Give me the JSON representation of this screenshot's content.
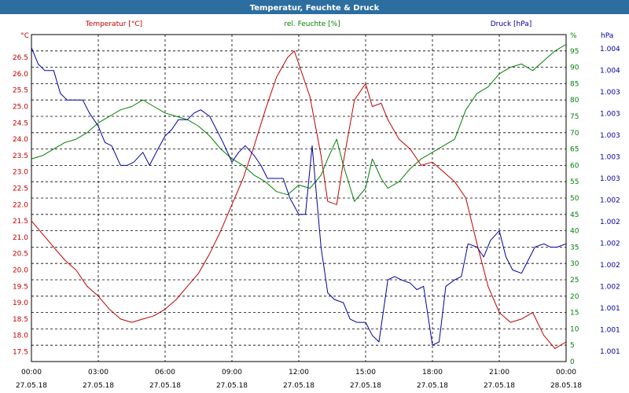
{
  "chart_data": {
    "type": "line",
    "title": "Temperatur, Feuchte & Druck",
    "x_ticks": [
      {
        "time": "00:00",
        "date": "27.05.18"
      },
      {
        "time": "03:00",
        "date": "27.05.18"
      },
      {
        "time": "06:00",
        "date": "27.05.18"
      },
      {
        "time": "09:00",
        "date": "27.05.18"
      },
      {
        "time": "12:00",
        "date": "27.05.18"
      },
      {
        "time": "15:00",
        "date": "27.05.18"
      },
      {
        "time": "18:00",
        "date": "27.05.18"
      },
      {
        "time": "21:00",
        "date": "27.05.18"
      },
      {
        "time": "00:00",
        "date": "28.05.18"
      }
    ],
    "xlim": [
      0,
      24
    ],
    "grid": true,
    "axes": {
      "temp": {
        "label": "Temperatur [°C]",
        "unit": "°C",
        "color": "#c00000",
        "ylim": [
          17.2,
          27.2
        ],
        "ticks": [
          "17.5",
          "18.0",
          "18.5",
          "19.0",
          "19.5",
          "20.0",
          "20.5",
          "21.0",
          "21.5",
          "22.0",
          "22.5",
          "23.0",
          "23.5",
          "24.0",
          "24.5",
          "25.0",
          "25.5",
          "26.0",
          "26.5"
        ]
      },
      "hum": {
        "label": "rel. Feuchte [%]",
        "unit": "%",
        "color": "#008000",
        "ylim": [
          0,
          100
        ],
        "ticks": [
          "0",
          "5",
          "10",
          "15",
          "20",
          "25",
          "30",
          "35",
          "40",
          "45",
          "50",
          "55",
          "60",
          "65",
          "70",
          "75",
          "80",
          "85",
          "90",
          "95"
        ]
      },
      "press": {
        "label": "Druck [hPa]",
        "unit": "hPa",
        "color": "#0000a0",
        "ticks": [
          "1.001",
          "1.001",
          "1.001",
          "1.002",
          "1.002",
          "1.002",
          "1.002",
          "1.002",
          "1.003",
          "1.003",
          "1.003",
          "1.003",
          "1.003",
          "1.004",
          "1.004"
        ]
      }
    },
    "series": [
      {
        "name": "Temperatur [°C]",
        "axis": "temp",
        "color": "#c00000",
        "x": [
          0,
          0.5,
          1,
          1.5,
          2,
          2.5,
          3,
          3.5,
          4,
          4.5,
          5,
          5.5,
          6,
          6.5,
          7,
          7.5,
          8,
          8.5,
          9,
          9.5,
          10,
          10.5,
          11,
          11.5,
          11.8,
          12,
          12.5,
          13,
          13.3,
          13.7,
          14,
          14.5,
          15,
          15.3,
          15.7,
          16,
          16.5,
          17,
          17.5,
          18,
          18.5,
          19,
          19.5,
          20,
          20.5,
          21,
          21.5,
          22,
          22.5,
          23,
          23.5,
          24
        ],
        "y": [
          21.5,
          21.1,
          20.7,
          20.3,
          20.0,
          19.5,
          19.2,
          18.8,
          18.5,
          18.4,
          18.5,
          18.6,
          18.8,
          19.1,
          19.5,
          19.9,
          20.5,
          21.2,
          22.0,
          22.8,
          23.8,
          24.9,
          25.9,
          26.5,
          26.7,
          26.3,
          25.3,
          23.5,
          22.1,
          22.0,
          23.3,
          25.2,
          25.7,
          25.0,
          25.1,
          24.6,
          24.0,
          23.7,
          23.2,
          23.3,
          23.0,
          22.7,
          22.2,
          20.8,
          19.5,
          18.7,
          18.4,
          18.5,
          18.7,
          18.0,
          17.6,
          17.8
        ]
      },
      {
        "name": "rel. Feuchte [%]",
        "axis": "hum",
        "color": "#008000",
        "x": [
          0,
          0.5,
          1,
          1.5,
          2,
          2.5,
          3,
          3.5,
          4,
          4.5,
          5,
          5.5,
          6,
          6.5,
          7,
          7.5,
          8,
          8.5,
          9,
          9.5,
          10,
          10.5,
          11,
          11.5,
          12,
          12.5,
          13,
          13.3,
          13.7,
          14,
          14.5,
          15,
          15.3,
          15.7,
          16,
          16.5,
          17,
          17.5,
          18,
          18.5,
          19,
          19.5,
          20,
          20.5,
          21,
          21.5,
          22,
          22.5,
          23,
          23.5,
          24
        ],
        "y": [
          62,
          63,
          65,
          67,
          68,
          70,
          73,
          75,
          77,
          78,
          80,
          78,
          76,
          75,
          74,
          72,
          69,
          65,
          62,
          60,
          57,
          55,
          52,
          51,
          54,
          53,
          57,
          62,
          68,
          60,
          49,
          53,
          62,
          56,
          53,
          55,
          59,
          62,
          64,
          66,
          68,
          77,
          82,
          84,
          88,
          90,
          91,
          89,
          92,
          95,
          97
        ]
      },
      {
        "name": "Druck [hPa]",
        "axis": "press",
        "color": "#0000a0",
        "x": [
          0,
          0.3,
          0.6,
          1,
          1.3,
          1.6,
          2,
          2.3,
          2.6,
          3,
          3.3,
          3.6,
          4,
          4.3,
          4.6,
          5,
          5.3,
          5.6,
          6,
          6.3,
          6.6,
          7,
          7.3,
          7.6,
          8,
          8.3,
          8.6,
          9,
          9.3,
          9.6,
          10,
          10.3,
          10.6,
          11,
          11.3,
          11.6,
          12,
          12.3,
          12.6,
          13,
          13.3,
          13.6,
          14,
          14.3,
          14.6,
          15,
          15.3,
          15.6,
          16,
          16.3,
          16.6,
          17,
          17.3,
          17.6,
          18,
          18.3,
          18.6,
          19,
          19.3,
          19.6,
          20,
          20.3,
          20.6,
          21,
          21.3,
          21.6,
          22,
          22.3,
          22.6,
          23,
          23.3,
          23.6,
          24
        ],
        "y": [
          96,
          91,
          89,
          89,
          82,
          80,
          80,
          80,
          76,
          72,
          67,
          66,
          60,
          60,
          61,
          64,
          60,
          64,
          69,
          71,
          74,
          74,
          76,
          77,
          75,
          71,
          67,
          61,
          64,
          66,
          63,
          60,
          56,
          56,
          56,
          50,
          45,
          45,
          66,
          35,
          21,
          19,
          18,
          13,
          12,
          12,
          8,
          6,
          25,
          26,
          25,
          24,
          22,
          23,
          5,
          6,
          23,
          25,
          26,
          36,
          35,
          32,
          37,
          40,
          32,
          28,
          27,
          31,
          35,
          36,
          35,
          35,
          36
        ]
      }
    ]
  }
}
